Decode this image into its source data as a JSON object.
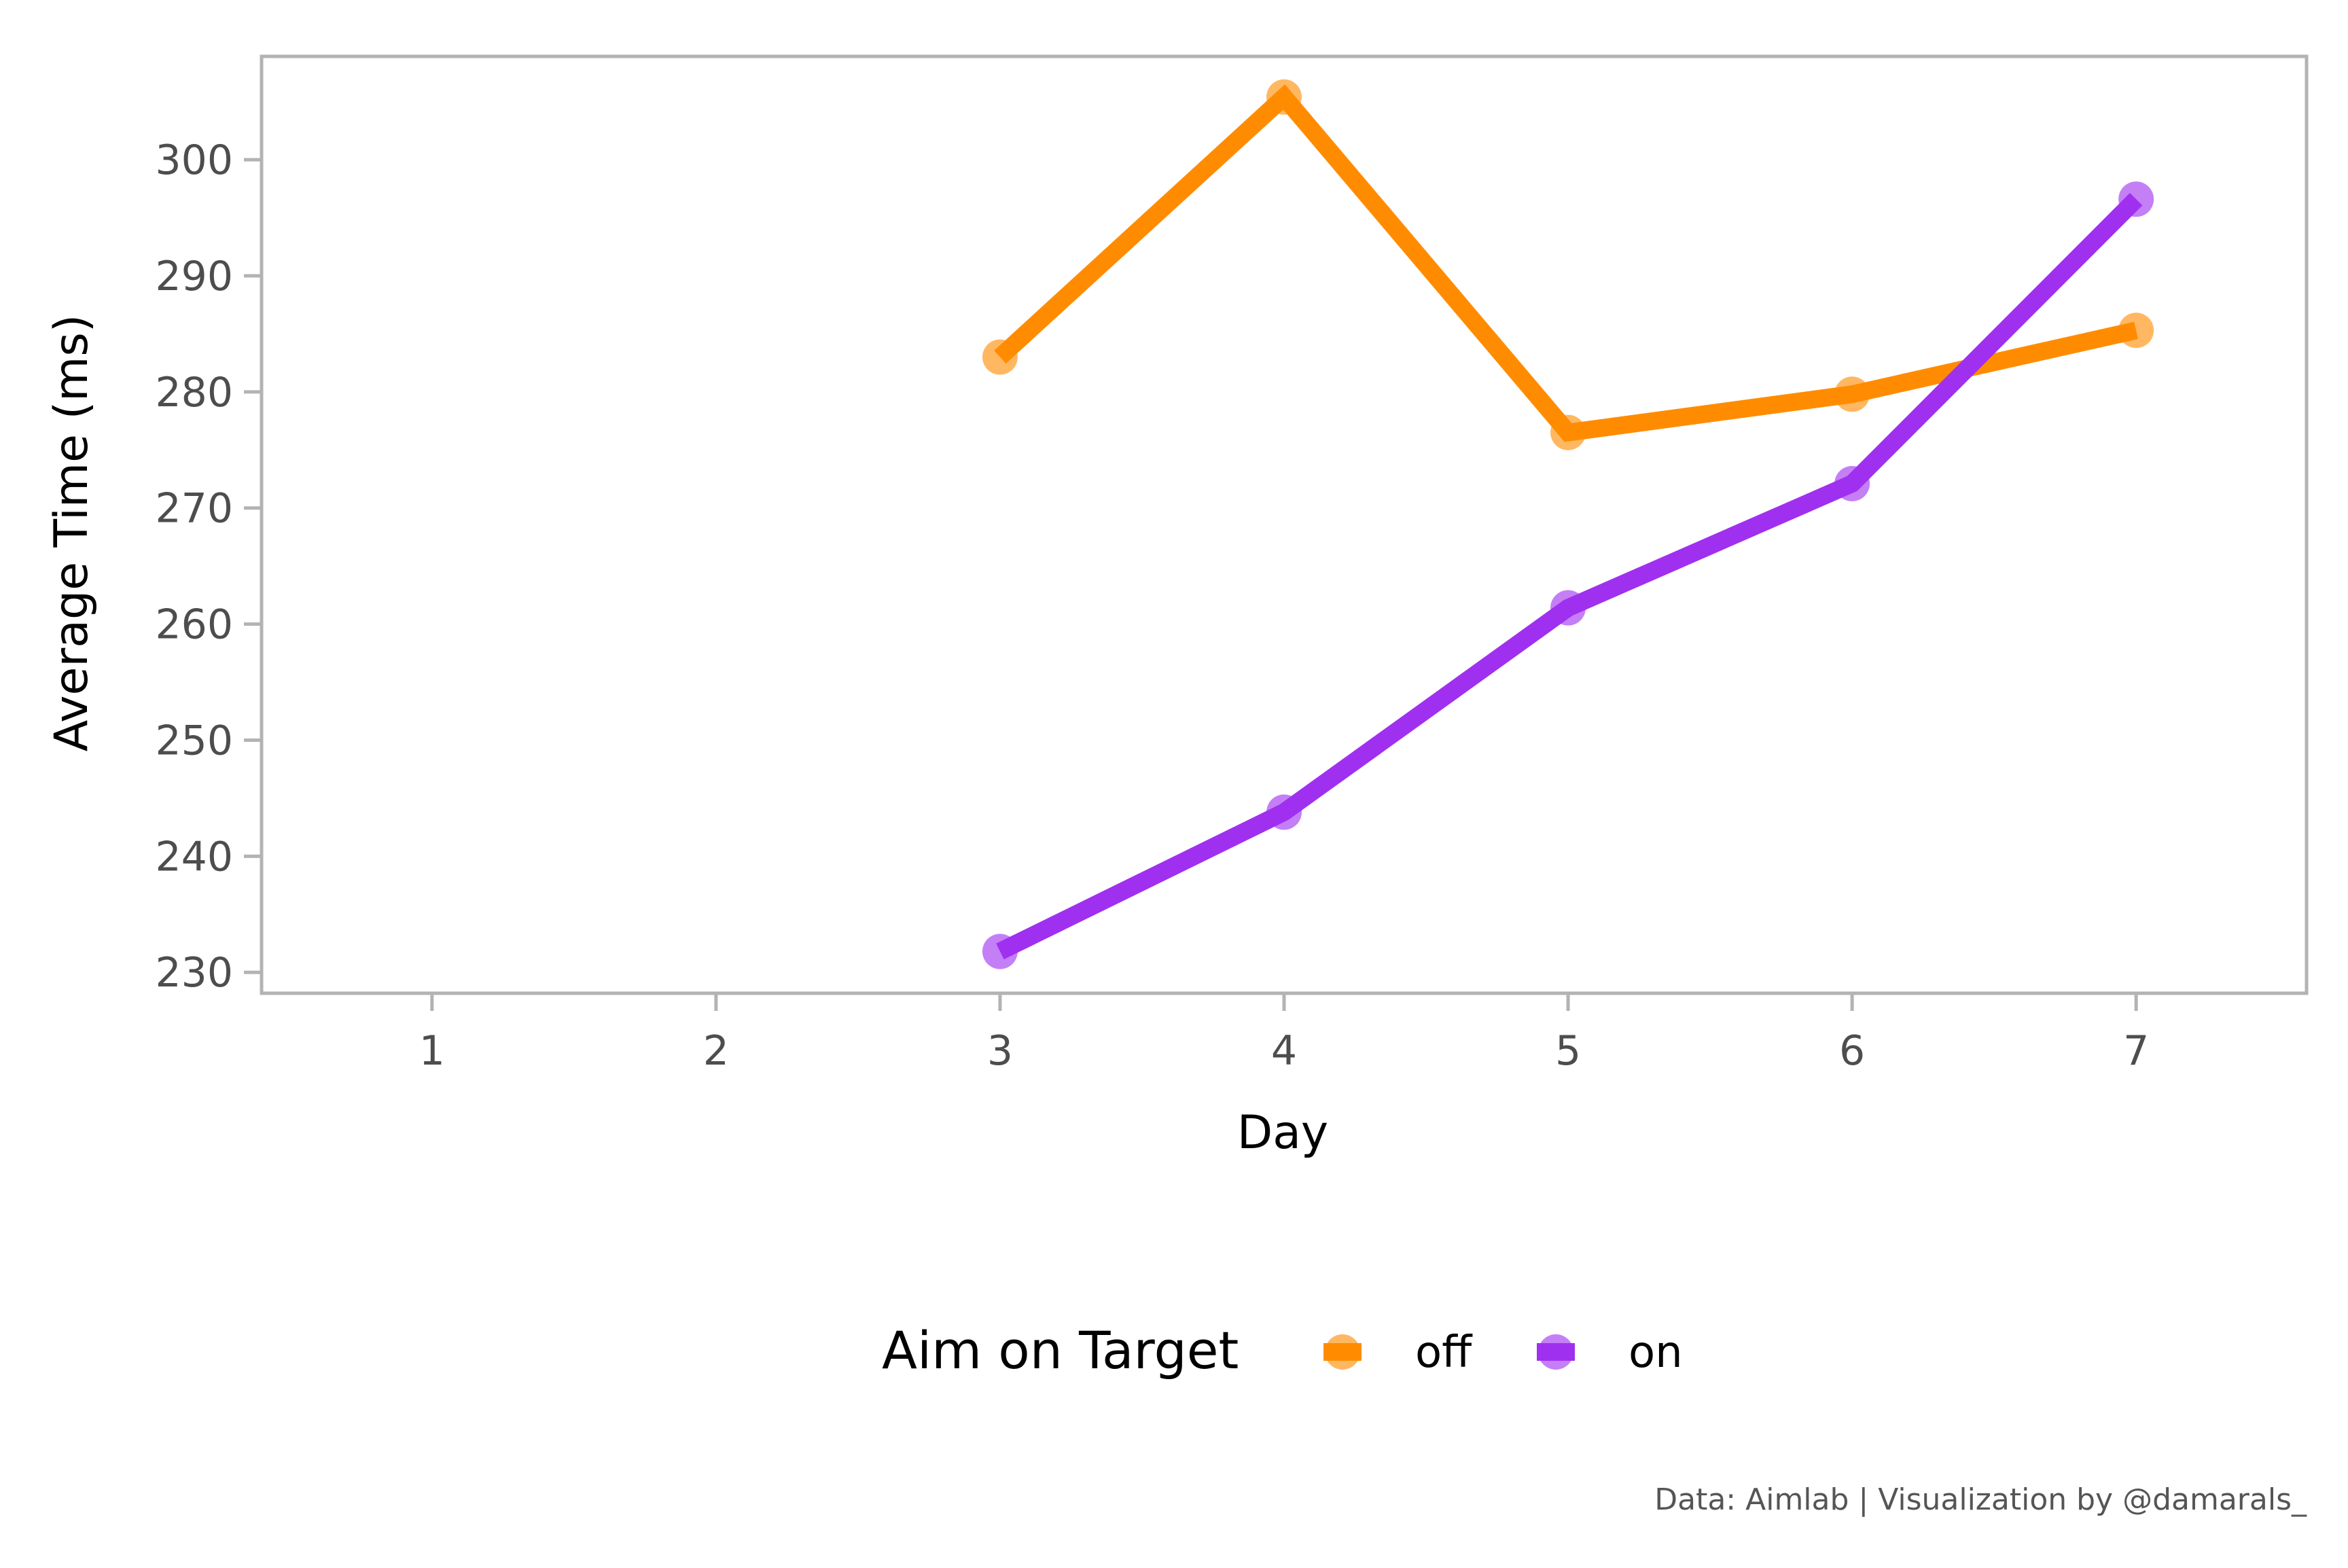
{
  "chart_data": {
    "type": "line",
    "xlabel": "Day",
    "ylabel": "Average Time (ms)",
    "x_ticks": [
      "1",
      "2",
      "3",
      "4",
      "5",
      "6",
      "7"
    ],
    "y_ticks": [
      "230",
      "240",
      "250",
      "260",
      "270",
      "280",
      "290",
      "300"
    ],
    "xlim": [
      0.4,
      7.6
    ],
    "ylim": [
      228.2,
      308.9
    ],
    "grid": false,
    "legend": {
      "title": "Aim on Target",
      "position": "bottom"
    },
    "series": [
      {
        "name": "off",
        "color": "#ff8c00",
        "x": [
          3,
          4,
          5,
          6,
          7
        ],
        "y": [
          283.0,
          305.4,
          276.5,
          279.8,
          285.3
        ]
      },
      {
        "name": "on",
        "color": "#a030f0",
        "x": [
          3,
          4,
          5,
          6,
          7
        ],
        "y": [
          231.8,
          243.8,
          261.4,
          272.1,
          296.6
        ]
      }
    ],
    "caption": "Data: Aimlab | Visualization by @damarals_"
  }
}
